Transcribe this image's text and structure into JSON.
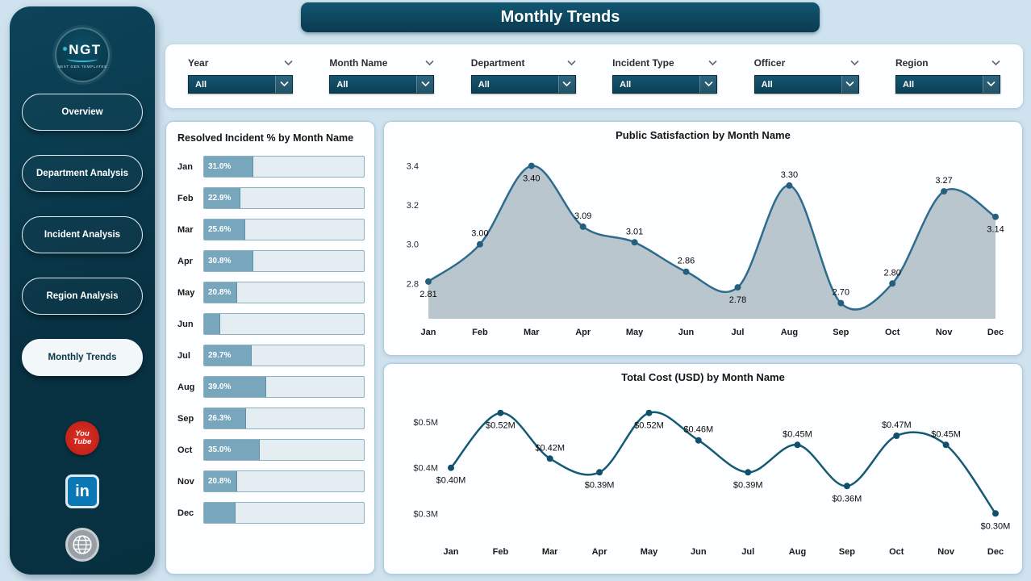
{
  "colors": {
    "background": "#cfe2ef",
    "sidebar_teal": "#0a3c4f",
    "dropdown_teal": "#0e4a61",
    "bar_fill": "#78a6bc",
    "youtube_red": "#d6261e",
    "linkedin_blue": "#0a78b5"
  },
  "header": {
    "title": "Monthly Trends"
  },
  "sidebar": {
    "logo_text": "NGT",
    "logo_subtext": "NEXT GEN TEMPLATES",
    "items": [
      {
        "label": "Overview",
        "active": false
      },
      {
        "label": "Department Analysis",
        "active": false
      },
      {
        "label": "Incident Analysis",
        "active": false
      },
      {
        "label": "Region Analysis",
        "active": false
      },
      {
        "label": "Monthly Trends",
        "active": true
      }
    ],
    "social": [
      {
        "name": "youtube",
        "lines": [
          "You",
          "Tube"
        ]
      },
      {
        "name": "linkedin",
        "text": "in"
      },
      {
        "name": "website"
      }
    ]
  },
  "filters": [
    {
      "label": "Year",
      "value": "All"
    },
    {
      "label": "Month Name",
      "value": "All"
    },
    {
      "label": "Department",
      "value": "All"
    },
    {
      "label": "Incident Type",
      "value": "All"
    },
    {
      "label": "Officer",
      "value": "All"
    },
    {
      "label": "Region",
      "value": "All"
    }
  ],
  "chart_data": [
    {
      "type": "bar",
      "orientation": "horizontal",
      "title": "Resolved Incident % by Month Name",
      "categories": [
        "Jan",
        "Feb",
        "Mar",
        "Apr",
        "May",
        "Jun",
        "Jul",
        "Aug",
        "Sep",
        "Oct",
        "Nov",
        "Dec"
      ],
      "values": [
        31.0,
        22.9,
        25.6,
        30.8,
        20.8,
        10.0,
        29.7,
        39.0,
        26.3,
        35.0,
        20.8,
        19.5
      ],
      "labels": [
        "31.0%",
        "22.9%",
        "25.6%",
        "30.8%",
        "20.8%",
        "",
        "29.7%",
        "39.0%",
        "26.3%",
        "35.0%",
        "20.8%",
        ""
      ],
      "xlim": [
        0,
        100
      ]
    },
    {
      "type": "area",
      "title": "Public Satisfaction by Month Name",
      "categories": [
        "Jan",
        "Feb",
        "Mar",
        "Apr",
        "May",
        "Jun",
        "Jul",
        "Aug",
        "Sep",
        "Oct",
        "Nov",
        "Dec"
      ],
      "values": [
        2.81,
        3.0,
        3.4,
        3.09,
        3.01,
        2.86,
        2.78,
        3.3,
        2.7,
        2.8,
        3.27,
        3.14
      ],
      "labels": [
        "2.81",
        "3.00",
        "3.40",
        "3.09",
        "3.01",
        "2.86",
        "2.78",
        "3.30",
        "2.70",
        "2.80",
        "3.27",
        "3.14"
      ],
      "label_pos": [
        "below",
        "above",
        "below",
        "above",
        "above",
        "above",
        "below",
        "above",
        "above",
        "above",
        "above",
        "below"
      ],
      "yticks": [
        {
          "label": "3.4",
          "value": 3.4
        },
        {
          "label": "3.2",
          "value": 3.2
        },
        {
          "label": "3.0",
          "value": 3.0
        },
        {
          "label": "2.8",
          "value": 2.8
        }
      ],
      "ylim": [
        2.62,
        3.46
      ],
      "area_color": "#b9c6ce",
      "line_color": "#2e6c8e",
      "point_color": "#24607e",
      "grid": false,
      "legend": false
    },
    {
      "type": "line",
      "title": "Total Cost (USD) by Month Name",
      "categories": [
        "Jan",
        "Feb",
        "Mar",
        "Apr",
        "May",
        "Jun",
        "Jul",
        "Aug",
        "Sep",
        "Oct",
        "Nov",
        "Dec"
      ],
      "values": [
        0.4,
        0.52,
        0.42,
        0.39,
        0.52,
        0.46,
        0.39,
        0.45,
        0.36,
        0.47,
        0.45,
        0.3
      ],
      "labels": [
        "$0.40M",
        "$0.52M",
        "$0.42M",
        "$0.39M",
        "$0.52M",
        "$0.46M",
        "$0.39M",
        "$0.45M",
        "$0.36M",
        "$0.47M",
        "$0.45M",
        "$0.30M"
      ],
      "label_pos": [
        "below",
        "below",
        "above",
        "below",
        "below",
        "above",
        "below",
        "above",
        "below",
        "above",
        "above",
        "below"
      ],
      "yticks": [
        {
          "label": "$0.5M",
          "value": 0.5
        },
        {
          "label": "$0.4M",
          "value": 0.4
        },
        {
          "label": "$0.3M",
          "value": 0.3
        }
      ],
      "ylim": [
        0.26,
        0.56
      ],
      "line_color": "#155a74",
      "point_color": "#11506c",
      "grid": false,
      "legend": false
    }
  ]
}
